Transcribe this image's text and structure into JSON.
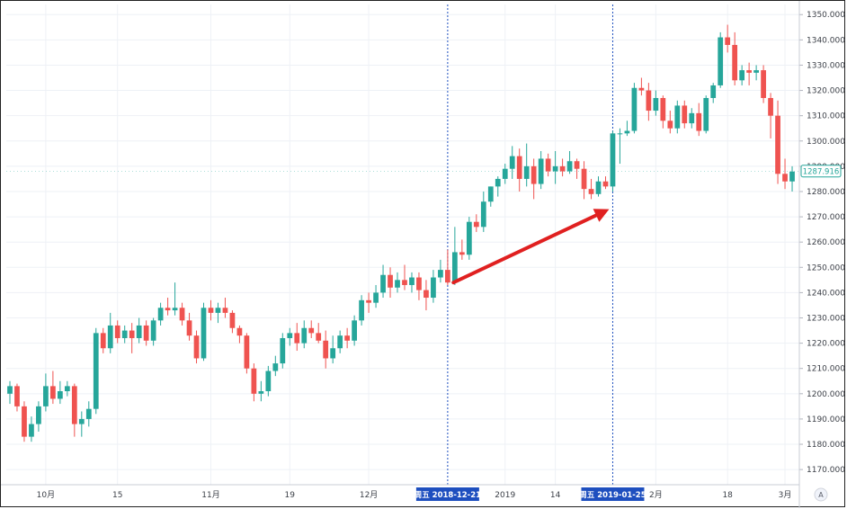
{
  "chart_data": {
    "type": "candlestick",
    "y_range": [
      1164,
      1354
    ],
    "y_ticks": [
      "1170.000",
      "1180.000",
      "1190.000",
      "1200.000",
      "1210.000",
      "1220.000",
      "1230.000",
      "1240.000",
      "1250.000",
      "1260.000",
      "1270.000",
      "1280.000",
      "1290.000",
      "1300.000",
      "1310.000",
      "1320.000",
      "1330.000",
      "1340.000",
      "1350.000"
    ],
    "x_ticks": [
      "10月",
      "15",
      "11月",
      "19",
      "12月",
      "2019",
      "14",
      "2月",
      "18",
      "3月"
    ],
    "x_tick_bars": [
      5,
      15,
      28,
      39,
      50,
      69,
      76,
      90,
      100,
      108
    ],
    "markers": [
      {
        "label": "周五 2018-12-21",
        "bar": 61
      },
      {
        "label": "周五 2019-01-25",
        "bar": 84
      }
    ],
    "last_price": "1287.916",
    "scale_button": "A",
    "colors": {
      "up": "#26a69a",
      "down": "#ef5350",
      "marker": "#1e4fbf",
      "arrow": "#e02020",
      "grid": "#eef1f6"
    },
    "annotation": {
      "type": "arrow",
      "from_bar": 61.8,
      "from_price": 1244,
      "to_bar": 83.5,
      "to_price": 1273
    },
    "candles": [
      [
        1200,
        1205,
        1196,
        1203
      ],
      [
        1203,
        1204,
        1193,
        1195
      ],
      [
        1195,
        1197,
        1181,
        1183
      ],
      [
        1183,
        1191,
        1181,
        1188
      ],
      [
        1188,
        1197,
        1185,
        1195
      ],
      [
        1195,
        1208,
        1193,
        1203
      ],
      [
        1203,
        1209,
        1196,
        1198
      ],
      [
        1198,
        1205,
        1196,
        1201
      ],
      [
        1201,
        1205,
        1199,
        1203
      ],
      [
        1203,
        1204,
        1183,
        1188
      ],
      [
        1188,
        1193,
        1183,
        1190
      ],
      [
        1190,
        1197,
        1187,
        1194
      ],
      [
        1194,
        1226,
        1192,
        1224
      ],
      [
        1224,
        1226,
        1216,
        1218
      ],
      [
        1218,
        1232,
        1216,
        1227
      ],
      [
        1227,
        1229,
        1220,
        1222
      ],
      [
        1222,
        1227,
        1220,
        1225
      ],
      [
        1225,
        1228,
        1216,
        1222
      ],
      [
        1222,
        1230,
        1220,
        1227
      ],
      [
        1227,
        1229,
        1219,
        1221
      ],
      [
        1221,
        1230,
        1219,
        1229
      ],
      [
        1229,
        1236,
        1227,
        1234
      ],
      [
        1234,
        1238,
        1231,
        1233
      ],
      [
        1233,
        1244,
        1231,
        1234
      ],
      [
        1234,
        1236,
        1227,
        1229
      ],
      [
        1229,
        1232,
        1221,
        1223
      ],
      [
        1223,
        1225,
        1212,
        1214
      ],
      [
        1214,
        1236,
        1213,
        1234
      ],
      [
        1234,
        1237,
        1229,
        1232
      ],
      [
        1232,
        1236,
        1228,
        1234
      ],
      [
        1234,
        1238,
        1230,
        1232
      ],
      [
        1232,
        1233,
        1224,
        1226
      ],
      [
        1226,
        1227,
        1220,
        1223
      ],
      [
        1223,
        1224,
        1208,
        1210
      ],
      [
        1210,
        1212,
        1197,
        1200
      ],
      [
        1200,
        1205,
        1197,
        1201
      ],
      [
        1201,
        1211,
        1199,
        1209
      ],
      [
        1209,
        1215,
        1207,
        1212
      ],
      [
        1212,
        1224,
        1210,
        1222
      ],
      [
        1222,
        1226,
        1219,
        1224
      ],
      [
        1224,
        1228,
        1217,
        1220
      ],
      [
        1220,
        1229,
        1218,
        1226
      ],
      [
        1226,
        1229,
        1222,
        1224
      ],
      [
        1224,
        1228,
        1220,
        1221
      ],
      [
        1221,
        1225,
        1210,
        1214
      ],
      [
        1214,
        1223,
        1212,
        1218
      ],
      [
        1218,
        1225,
        1216,
        1223
      ],
      [
        1223,
        1226,
        1218,
        1221
      ],
      [
        1221,
        1231,
        1219,
        1229
      ],
      [
        1229,
        1239,
        1227,
        1237
      ],
      [
        1237,
        1240,
        1232,
        1236
      ],
      [
        1236,
        1243,
        1234,
        1240
      ],
      [
        1240,
        1251,
        1238,
        1247
      ],
      [
        1247,
        1250,
        1238,
        1242
      ],
      [
        1242,
        1248,
        1240,
        1245
      ],
      [
        1245,
        1251,
        1241,
        1243
      ],
      [
        1243,
        1248,
        1240,
        1246
      ],
      [
        1246,
        1248,
        1237,
        1241
      ],
      [
        1241,
        1245,
        1233,
        1238
      ],
      [
        1238,
        1249,
        1236,
        1246
      ],
      [
        1246,
        1253,
        1244,
        1249
      ],
      [
        1249,
        1257,
        1243,
        1244
      ],
      [
        1244,
        1266,
        1243,
        1256
      ],
      [
        1256,
        1261,
        1253,
        1255
      ],
      [
        1255,
        1270,
        1253,
        1268
      ],
      [
        1268,
        1271,
        1264,
        1266
      ],
      [
        1266,
        1280,
        1264,
        1276
      ],
      [
        1276,
        1282,
        1274,
        1282
      ],
      [
        1282,
        1286,
        1278,
        1285
      ],
      [
        1285,
        1291,
        1283,
        1289
      ],
      [
        1289,
        1298,
        1285,
        1294
      ],
      [
        1294,
        1297,
        1280,
        1285
      ],
      [
        1285,
        1299,
        1282,
        1290
      ],
      [
        1290,
        1293,
        1277,
        1283
      ],
      [
        1283,
        1296,
        1281,
        1293
      ],
      [
        1293,
        1295,
        1286,
        1288
      ],
      [
        1288,
        1296,
        1283,
        1290
      ],
      [
        1290,
        1293,
        1286,
        1288
      ],
      [
        1288,
        1296,
        1287,
        1292
      ],
      [
        1292,
        1293,
        1285,
        1289
      ],
      [
        1289,
        1292,
        1277,
        1281
      ],
      [
        1281,
        1285,
        1277,
        1279
      ],
      [
        1279,
        1286,
        1278,
        1284
      ],
      [
        1284,
        1286,
        1281,
        1282
      ],
      [
        1282,
        1304,
        1280,
        1303
      ],
      [
        1303,
        1305,
        1291,
        1303
      ],
      [
        1303,
        1308,
        1302,
        1304
      ],
      [
        1304,
        1323,
        1303,
        1321
      ],
      [
        1321,
        1325,
        1318,
        1320
      ],
      [
        1320,
        1323,
        1308,
        1312
      ],
      [
        1312,
        1320,
        1310,
        1317
      ],
      [
        1317,
        1318,
        1305,
        1308
      ],
      [
        1308,
        1312,
        1303,
        1305
      ],
      [
        1305,
        1316,
        1303,
        1314
      ],
      [
        1314,
        1316,
        1305,
        1307
      ],
      [
        1307,
        1313,
        1305,
        1311
      ],
      [
        1311,
        1315,
        1302,
        1304
      ],
      [
        1304,
        1318,
        1303,
        1317
      ],
      [
        1317,
        1323,
        1315,
        1322
      ],
      [
        1322,
        1343,
        1321,
        1341
      ],
      [
        1341,
        1346,
        1335,
        1338
      ],
      [
        1338,
        1343,
        1322,
        1324
      ],
      [
        1324,
        1330,
        1322,
        1328
      ],
      [
        1328,
        1331,
        1322,
        1327
      ],
      [
        1327,
        1330,
        1324,
        1328
      ],
      [
        1328,
        1330,
        1315,
        1317
      ],
      [
        1317,
        1319,
        1301,
        1310
      ],
      [
        1310,
        1316,
        1283,
        1287
      ],
      [
        1287,
        1293,
        1281,
        1284
      ],
      [
        1284,
        1290,
        1280,
        1287.9
      ]
    ]
  }
}
